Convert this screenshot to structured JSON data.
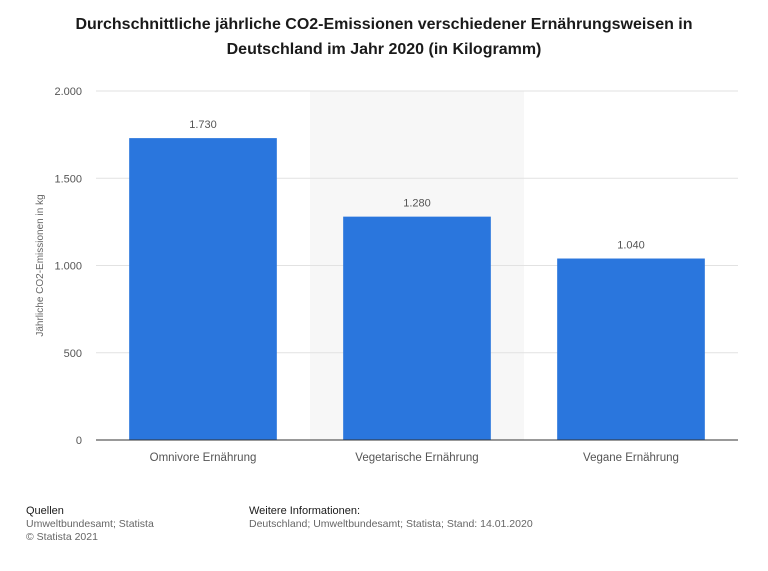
{
  "title_line1": "Durchschnittliche jährliche CO2-Emissionen verschiedener Ernährungsweisen in",
  "title_line2": "Deutschland im Jahr 2020 (in Kilogramm)",
  "colors": {
    "bar": "#2a76dd",
    "grid": "#e2e2e2",
    "band": "#f7f7f7",
    "axis": "#333333",
    "text": "#555555"
  },
  "chart_data": {
    "type": "bar",
    "categories": [
      "Omnivore Ernährung",
      "Vegetarische Ernährung",
      "Vegane Ernährung"
    ],
    "values": [
      1730,
      1280,
      1040
    ],
    "value_labels": [
      "1.730",
      "1.280",
      "1.040"
    ],
    "ylabel": "Jährliche CO2-Emissionen in kg",
    "xlabel": "",
    "ylim": [
      0,
      2000
    ],
    "yticks": [
      0,
      500,
      1000,
      1500,
      2000
    ],
    "ytick_labels": [
      "0",
      "500",
      "1.000",
      "1.500",
      "2.000"
    ],
    "grid": true
  },
  "footer": {
    "sources_heading": "Quellen",
    "sources_line1": "Umweltbundesamt; Statista",
    "sources_line2": "© Statista 2021",
    "info_heading": "Weitere Informationen:",
    "info_line": "Deutschland; Umweltbundesamt; Statista; Stand: 14.01.2020"
  }
}
